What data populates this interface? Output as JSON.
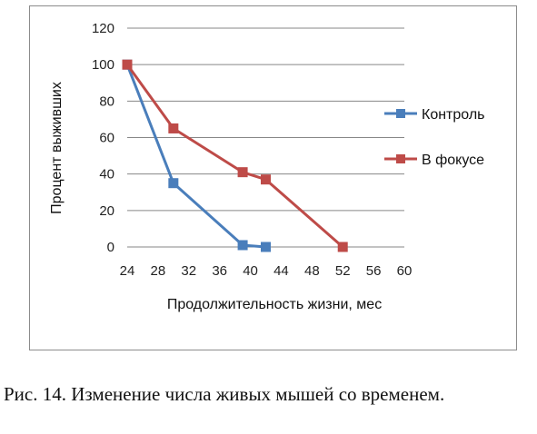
{
  "chart_data": {
    "type": "line",
    "xlabel": "Продолжительность жизни, мес",
    "ylabel": "Процент выживших",
    "xlim": [
      24,
      60
    ],
    "ylim": [
      0,
      120
    ],
    "xticks": [
      "24",
      "28",
      "32",
      "36",
      "40",
      "44",
      "48",
      "52",
      "56",
      "60"
    ],
    "yticks": [
      "0",
      "20",
      "40",
      "60",
      "80",
      "100",
      "120"
    ],
    "grid": "horizontal",
    "legend": "right",
    "series": [
      {
        "name": "Контроль",
        "color": "#4a7ebb",
        "points": [
          {
            "x": 24,
            "y": 100
          },
          {
            "x": 30,
            "y": 35
          },
          {
            "x": 39,
            "y": 1
          },
          {
            "x": 42,
            "y": 0
          }
        ]
      },
      {
        "name": "В фокусе",
        "color": "#be4b48",
        "points": [
          {
            "x": 24,
            "y": 100
          },
          {
            "x": 30,
            "y": 65
          },
          {
            "x": 39,
            "y": 41
          },
          {
            "x": 42,
            "y": 37
          },
          {
            "x": 52,
            "y": 0
          }
        ]
      }
    ]
  },
  "caption": "Рис. 14. Изменение числа живых мышей со временем."
}
